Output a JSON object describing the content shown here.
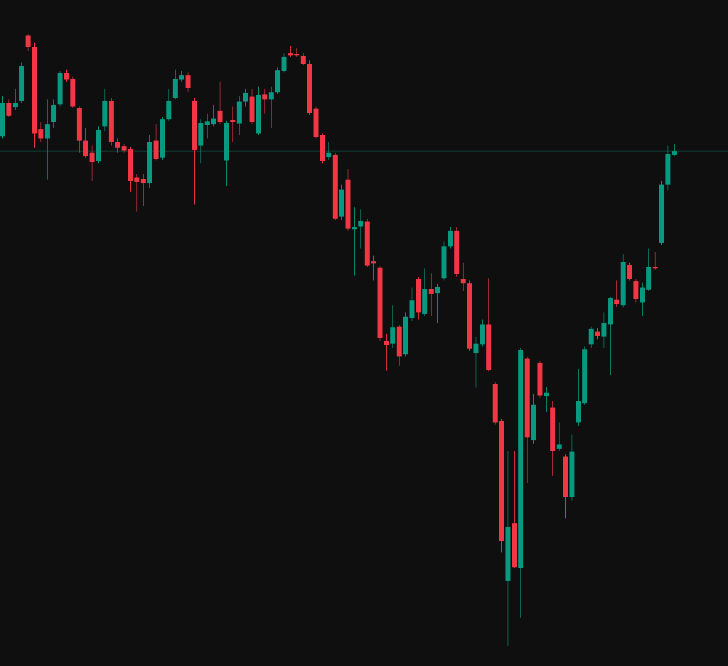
{
  "chart_data": {
    "type": "candlestick",
    "up_color": "#089981",
    "down_color": "#f23645",
    "ylim": [
      0,
      938
    ],
    "open": [
      746,
      793,
      787,
      796,
      888,
      872,
      756,
      743,
      766,
      791,
      835,
      827,
      786,
      740,
      723,
      711,
      760,
      796,
      738,
      732,
      728,
      688,
      686,
      680,
      740,
      716,
      770,
      800,
      826,
      832,
      796,
      733,
      762,
      763,
      782,
      712,
      769,
      764,
      795,
      802,
      750,
      805,
      798,
      808,
      838,
      863,
      862,
      859,
      848,
      785,
      748,
      717,
      720,
      633,
      685,
      615,
      619,
      626,
      570,
      561,
      458,
      454,
      478,
      439,
      490,
      545,
      496,
      531,
      525,
      546,
      591,
      613,
      545,
      539,
      441,
      453,
      481,
      397,
      345,
      120,
      201,
      138,
      433,
      318,
      427,
      380,
      364,
      306,
      295,
      238,
      343,
      370,
      453,
      471,
      464,
      481,
      516,
      508,
      565,
      542,
      512,
      530,
      562,
      596,
      678,
      720
    ],
    "high": [
      803,
      798,
      813,
      850,
      890,
      878,
      766,
      798,
      798,
      838,
      840,
      830,
      788,
      758,
      733,
      760,
      813,
      800,
      743,
      735,
      731,
      693,
      693,
      748,
      763,
      773,
      813,
      840,
      838,
      836,
      800,
      770,
      778,
      790,
      823,
      768,
      788,
      803,
      813,
      813,
      816,
      813,
      816,
      843,
      863,
      873,
      870,
      863,
      853,
      788,
      750,
      738,
      723,
      678,
      700,
      646,
      643,
      630,
      578,
      563,
      468,
      508,
      480,
      498,
      533,
      548,
      560,
      553,
      538,
      598,
      618,
      618,
      568,
      543,
      463,
      488,
      546,
      400,
      348,
      303,
      303,
      448,
      435,
      383,
      430,
      393,
      373,
      343,
      298,
      326,
      418,
      450,
      478,
      476,
      498,
      520,
      543,
      580,
      568,
      545,
      540,
      588,
      583,
      683,
      733,
      735
    ],
    "low": [
      743,
      773,
      783,
      793,
      866,
      730,
      738,
      685,
      758,
      788,
      823,
      786,
      723,
      716,
      683,
      708,
      753,
      733,
      723,
      723,
      668,
      640,
      648,
      673,
      712,
      713,
      768,
      798,
      823,
      808,
      650,
      708,
      743,
      760,
      763,
      676,
      738,
      748,
      788,
      763,
      748,
      778,
      758,
      806,
      836,
      858,
      858,
      846,
      776,
      743,
      708,
      713,
      628,
      628,
      613,
      550,
      588,
      562,
      543,
      458,
      416,
      448,
      423,
      436,
      486,
      488,
      493,
      493,
      483,
      543,
      588,
      548,
      528,
      444,
      392,
      450,
      415,
      340,
      160,
      28,
      138,
      68,
      258,
      313,
      378,
      358,
      268,
      303,
      208,
      233,
      338,
      368,
      448,
      460,
      448,
      410,
      506,
      505,
      543,
      512,
      493,
      528,
      558,
      593,
      670,
      718
    ],
    "close": [
      793,
      775,
      793,
      845,
      872,
      750,
      743,
      763,
      790,
      835,
      826,
      788,
      740,
      718,
      710,
      755,
      796,
      738,
      730,
      726,
      683,
      682,
      680,
      738,
      714,
      770,
      796,
      827,
      832,
      814,
      727,
      765,
      767,
      771,
      766,
      765,
      766,
      795,
      807,
      766,
      804,
      798,
      808,
      839,
      858,
      860,
      860,
      848,
      779,
      745,
      711,
      723,
      630,
      671,
      616,
      618,
      627,
      564,
      567,
      462,
      452,
      477,
      436,
      492,
      515,
      498,
      531,
      524,
      534,
      591,
      613,
      552,
      539,
      447,
      454,
      481,
      417,
      343,
      176,
      196,
      139,
      445,
      322,
      368,
      381,
      385,
      303,
      312,
      238,
      302,
      373,
      446,
      475,
      465,
      483,
      518,
      510,
      569,
      545,
      517,
      533,
      562,
      560,
      678,
      721,
      725
    ]
  }
}
